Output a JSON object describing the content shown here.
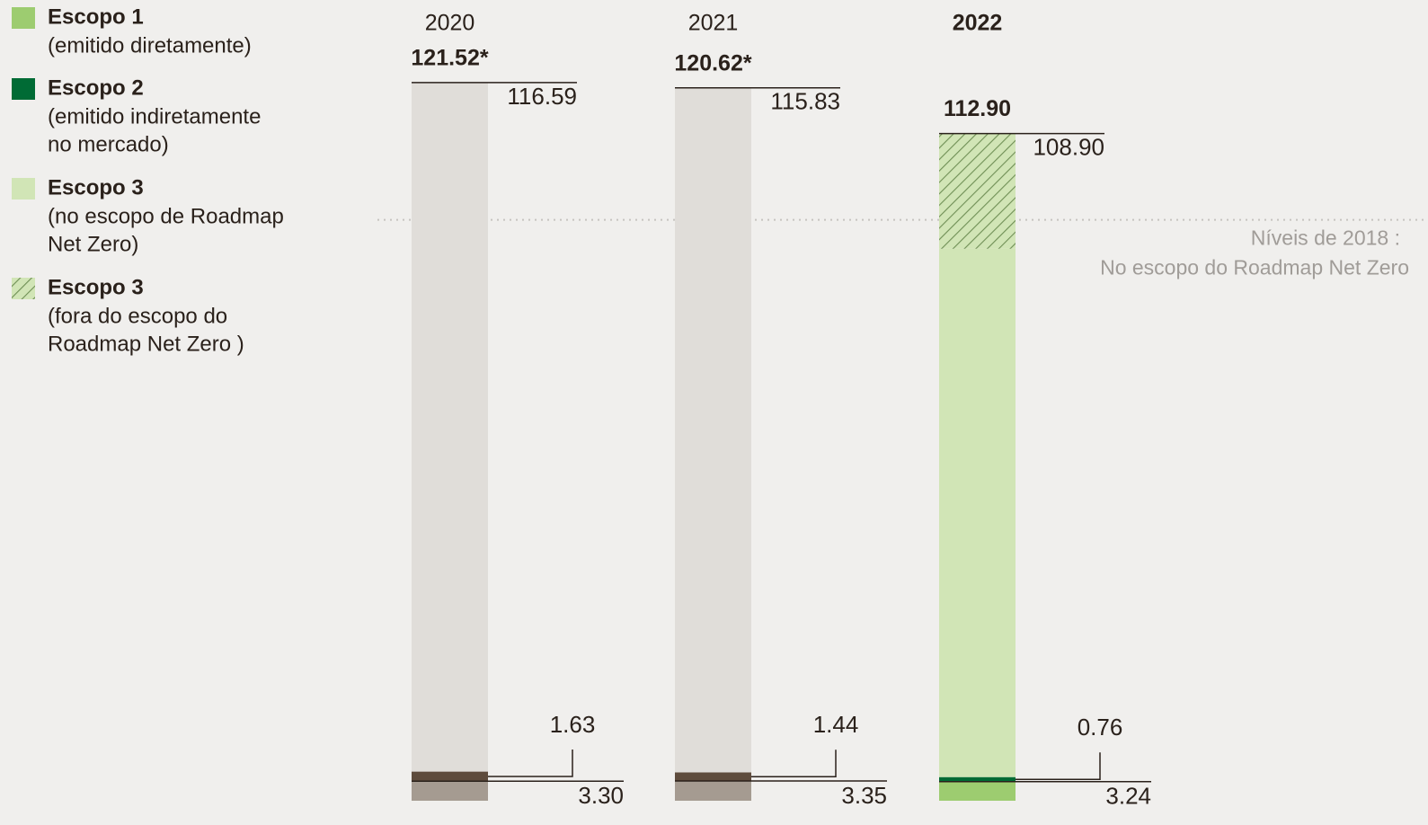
{
  "chart_data": {
    "type": "stacked-bar",
    "categories": [
      "2020",
      "2021",
      "2022"
    ],
    "highlight_category": "2022",
    "series": [
      {
        "name": "Escopo 1",
        "description": [
          "(emitido diretamente)"
        ],
        "color": "#9dcc70",
        "colors": [
          "#a59b91",
          "#a59b91",
          "#9dcc70"
        ],
        "values": [
          3.3,
          3.35,
          3.24
        ],
        "value_labels": [
          "3.30",
          "3.35",
          "3.24"
        ]
      },
      {
        "name": "Escopo 2",
        "description": [
          "(emitido indiretamente",
          "no mercado)"
        ],
        "color": "#006b35",
        "colors": [
          "#5e4b3c",
          "#5e4b3c",
          "#006b35"
        ],
        "values": [
          1.63,
          1.44,
          0.76
        ],
        "value_labels": [
          "1.63",
          "1.44",
          "0.76"
        ]
      },
      {
        "name": "Escopo 3",
        "description": [
          "(no escopo de Roadmap",
          "Net Zero)"
        ],
        "color": "#d1e5b6",
        "colors": [
          "#e0ddd9",
          "#e0ddd9",
          "#d1e5b6"
        ],
        "values": [
          116.59,
          115.83,
          89.4
        ]
      },
      {
        "name": "Escopo 3",
        "description": [
          "(fora do escopo do",
          "Roadmap Net Zero )"
        ],
        "color": "#9dcc70",
        "hatch": true,
        "colors": [
          "#e0ddd9",
          "#e0ddd9",
          "#9dcc70"
        ],
        "values": [
          null,
          null,
          19.5
        ]
      }
    ],
    "scope3_totals": [
      116.59,
      115.83,
      108.9
    ],
    "scope3_total_labels": [
      "116.59",
      "115.83",
      "108.90"
    ],
    "totals": [
      121.52,
      120.62,
      112.9
    ],
    "total_labels": [
      "121.52*",
      "120.62*",
      "112.90"
    ],
    "reference_line": {
      "value": 98.3,
      "label": "Níveis de 2018 :",
      "sublabel": "No escopo do Roadmap Net Zero"
    },
    "ylim": [
      0,
      125
    ]
  }
}
